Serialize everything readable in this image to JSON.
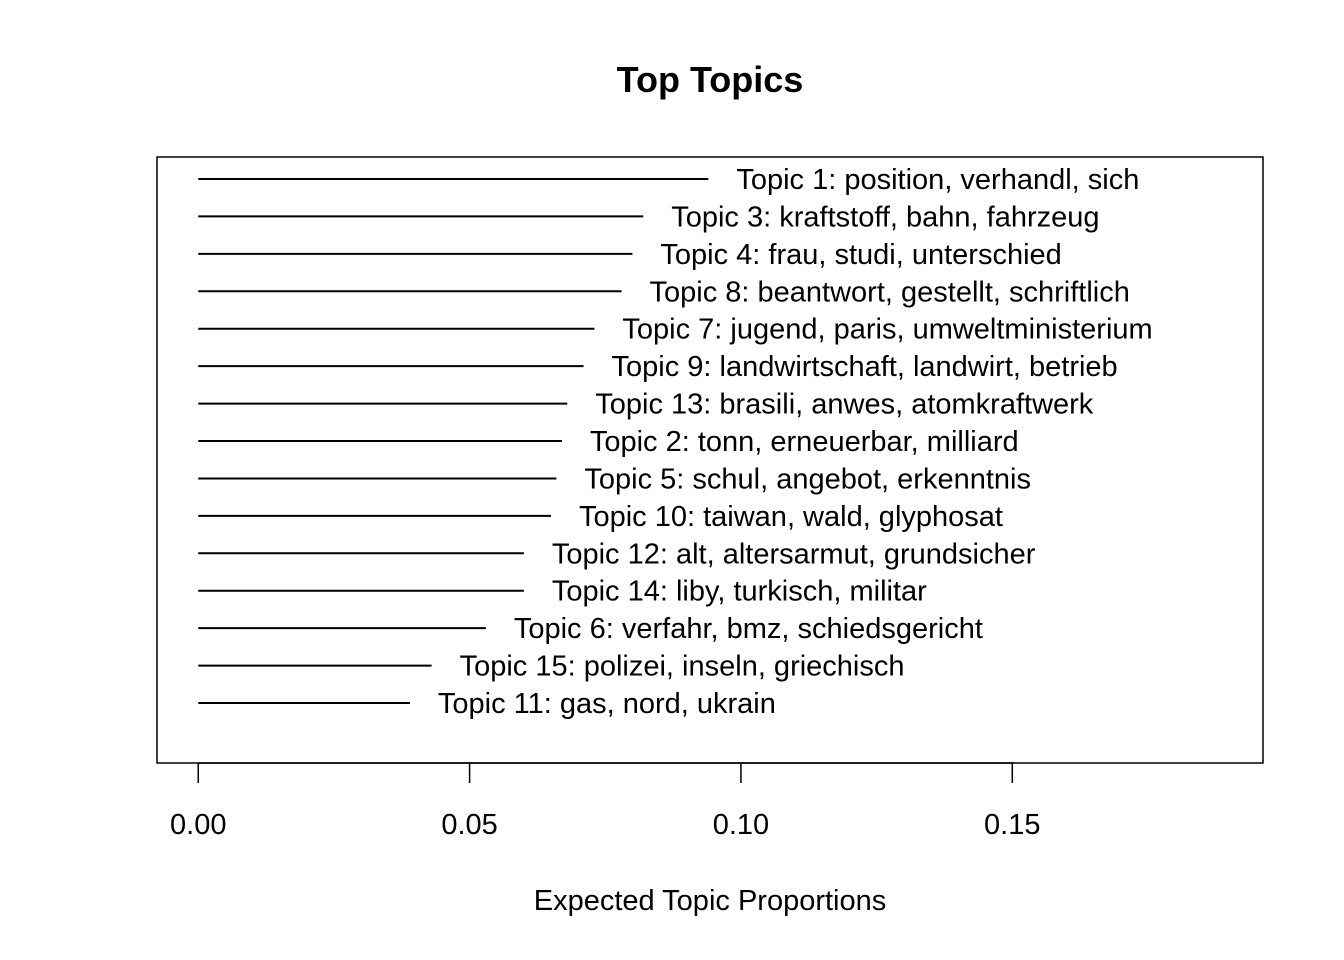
{
  "chart_data": {
    "type": "bar",
    "orientation": "horizontal",
    "title": "Top Topics",
    "xlabel": "Expected Topic Proportions",
    "ylabel": "",
    "xlim": [
      -0.0076,
      0.1962
    ],
    "x_ticks": [
      0.0,
      0.05,
      0.1,
      0.15
    ],
    "x_tick_labels": [
      "0.00",
      "0.05",
      "0.10",
      "0.15"
    ],
    "categories": [
      "Topic 1: position, verhandl, sich",
      "Topic 3: kraftstoff, bahn, fahrzeug",
      "Topic 4: frau, studi, unterschied",
      "Topic 8: beantwort, gestellt, schriftlich",
      "Topic 7: jugend, paris, umweltministerium",
      "Topic 9: landwirtschaft, landwirt, betrieb",
      "Topic 13: brasili, anwes, atomkraftwerk",
      "Topic 2: tonn, erneuerbar, milliard",
      "Topic 5: schul, angebot, erkenntnis",
      "Topic 10: taiwan, wald, glyphosat",
      "Topic 12: alt, altersarmut, grundsicher",
      "Topic 14: liby, turkisch, militar",
      "Topic 6: verfahr, bmz, schiedsgericht",
      "Topic 15: polizei, inseln, griechisch",
      "Topic 11: gas, nord, ukrain"
    ],
    "values": [
      0.094,
      0.082,
      0.08,
      0.078,
      0.073,
      0.071,
      0.068,
      0.067,
      0.066,
      0.065,
      0.06,
      0.06,
      0.053,
      0.043,
      0.039
    ],
    "grid": false,
    "legend": "none",
    "colors": {
      "line": "#000000",
      "frame": "#000000",
      "background": "#ffffff"
    }
  }
}
